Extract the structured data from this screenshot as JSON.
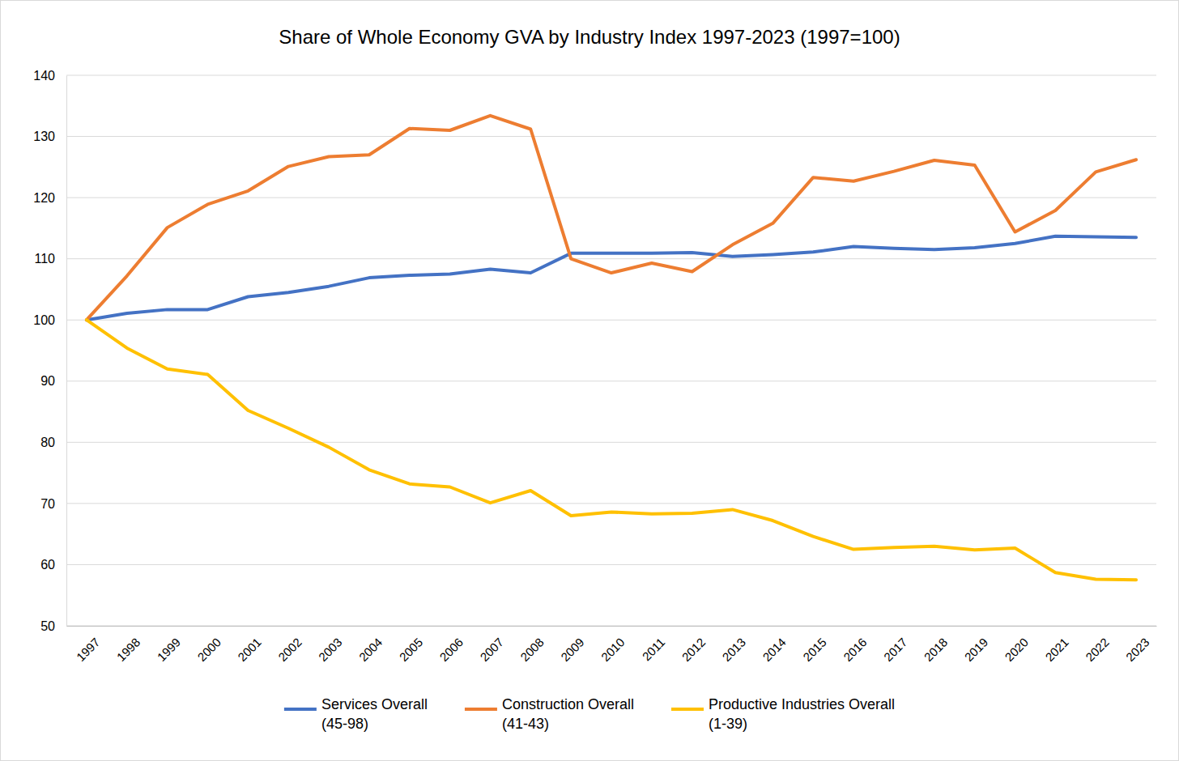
{
  "chart_data": {
    "type": "line",
    "title": "Share of Whole Economy GVA by Industry Index 1997-2023 (1997=100)",
    "categories": [
      "1997",
      "1998",
      "1999",
      "2000",
      "2001",
      "2002",
      "2003",
      "2004",
      "2005",
      "2006",
      "2007",
      "2008",
      "2009",
      "2010",
      "2011",
      "2012",
      "2013",
      "2014",
      "2015",
      "2016",
      "2017",
      "2018",
      "2019",
      "2020",
      "2021",
      "2022",
      "2023"
    ],
    "series": [
      {
        "name": "Services Overall\n(45-98)",
        "color": "#4472c4",
        "values": [
          100,
          101.1,
          101.7,
          101.7,
          103.8,
          104.5,
          105.5,
          106.9,
          107.3,
          107.5,
          108.3,
          107.7,
          110.9,
          110.9,
          110.9,
          111.0,
          110.4,
          110.7,
          111.1,
          112.0,
          111.7,
          111.5,
          111.8,
          112.5,
          113.7,
          113.6,
          113.5
        ]
      },
      {
        "name": "Construction Overall\n(41-43)",
        "color": "#ed7d31",
        "values": [
          100,
          107.2,
          115.1,
          118.9,
          121.1,
          125.1,
          126.7,
          127.0,
          131.3,
          131.0,
          133.4,
          131.2,
          110.0,
          107.7,
          109.3,
          107.9,
          112.3,
          115.8,
          123.3,
          122.7,
          124.3,
          126.1,
          125.3,
          114.4,
          117.9,
          124.2,
          126.2
        ]
      },
      {
        "name": "Productive Industries Overall\n(1-39)",
        "color": "#ffc000",
        "values": [
          100,
          95.4,
          92.0,
          91.1,
          85.2,
          82.3,
          79.2,
          75.5,
          73.2,
          72.7,
          70.1,
          72.1,
          68.0,
          68.6,
          68.3,
          68.4,
          69.0,
          67.2,
          64.6,
          62.5,
          62.8,
          63.0,
          62.4,
          62.7,
          58.7,
          57.6,
          57.5
        ]
      }
    ],
    "ylim": [
      50,
      140
    ],
    "yticks": [
      50,
      60,
      70,
      80,
      90,
      100,
      110,
      120,
      130,
      140
    ],
    "grid": true,
    "legend": "bottom"
  }
}
